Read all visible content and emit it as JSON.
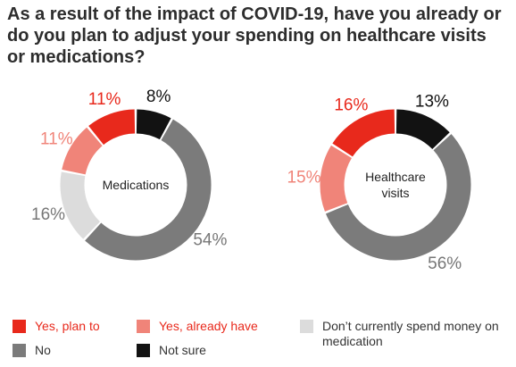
{
  "title": "As a result of the impact of COVID-19, have you already or do you plan to adjust your spending on healthcare visits or medications?",
  "colors": {
    "yes_plan": "#e8291c",
    "yes_already": "#f08479",
    "dont_spend": "#dcdcdc",
    "no": "#7b7b7b",
    "not_sure": "#121212"
  },
  "legend": [
    {
      "key": "yes_plan",
      "label": "Yes, plan to",
      "label_color": "#e8291c"
    },
    {
      "key": "yes_already",
      "label": "Yes, already have",
      "label_color": "#e8291c"
    },
    {
      "key": "dont_spend",
      "label": "Don’t currently spend money on medication",
      "label_color": "#333333"
    },
    {
      "key": "no",
      "label": "No",
      "label_color": "#333333"
    },
    {
      "key": "not_sure",
      "label": "Not sure",
      "label_color": "#333333"
    }
  ],
  "chart_data": [
    {
      "type": "pie",
      "donut": true,
      "center_label": [
        "Medications"
      ],
      "slices": [
        {
          "key": "not_sure",
          "value": 8,
          "label": "8%"
        },
        {
          "key": "no",
          "value": 54,
          "label": "54%"
        },
        {
          "key": "dont_spend",
          "value": 16,
          "label": "16%"
        },
        {
          "key": "yes_already",
          "value": 11,
          "label": "11%"
        },
        {
          "key": "yes_plan",
          "value": 11,
          "label": "11%"
        }
      ]
    },
    {
      "type": "pie",
      "donut": true,
      "center_label": [
        "Healthcare",
        "visits"
      ],
      "slices": [
        {
          "key": "not_sure",
          "value": 13,
          "label": "13%"
        },
        {
          "key": "no",
          "value": 56,
          "label": "56%"
        },
        {
          "key": "yes_already",
          "value": 15,
          "label": "15%"
        },
        {
          "key": "yes_plan",
          "value": 16,
          "label": "16%"
        }
      ]
    }
  ]
}
